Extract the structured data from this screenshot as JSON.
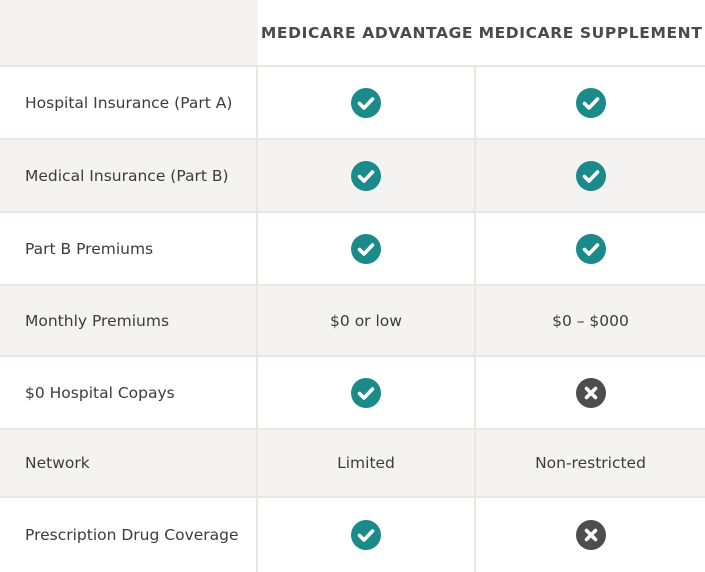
{
  "columns": [
    "MEDICARE ADVANTAGE",
    "MEDICARE SUPPLEMENT"
  ],
  "colors": {
    "check": "#1a8a8a",
    "cross": "#4d4d4d",
    "alt_row": "#f4f3f1",
    "border": "#e9e7e4"
  },
  "rows": [
    {
      "label": "Hospital Insurance (Part A)",
      "advantage": {
        "type": "check-icon",
        "text": ""
      },
      "supplement": {
        "type": "check-icon",
        "text": ""
      }
    },
    {
      "label": "Medical Insurance (Part B)",
      "advantage": {
        "type": "check-icon",
        "text": ""
      },
      "supplement": {
        "type": "check-icon",
        "text": ""
      }
    },
    {
      "label": "Part B Premiums",
      "advantage": {
        "type": "check-icon",
        "text": ""
      },
      "supplement": {
        "type": "check-icon",
        "text": ""
      }
    },
    {
      "label": "Monthly Premiums",
      "advantage": {
        "type": "text",
        "text": "$0 or low"
      },
      "supplement": {
        "type": "text",
        "text": "$0 – $000"
      }
    },
    {
      "label": "$0 Hospital Copays",
      "advantage": {
        "type": "check-icon",
        "text": ""
      },
      "supplement": {
        "type": "cross-icon",
        "text": ""
      }
    },
    {
      "label": "Network",
      "advantage": {
        "type": "text",
        "text": "Limited"
      },
      "supplement": {
        "type": "text",
        "text": "Non-restricted"
      }
    },
    {
      "label": "Prescription Drug Coverage",
      "advantage": {
        "type": "check-icon",
        "text": ""
      },
      "supplement": {
        "type": "cross-icon",
        "text": ""
      }
    }
  ]
}
